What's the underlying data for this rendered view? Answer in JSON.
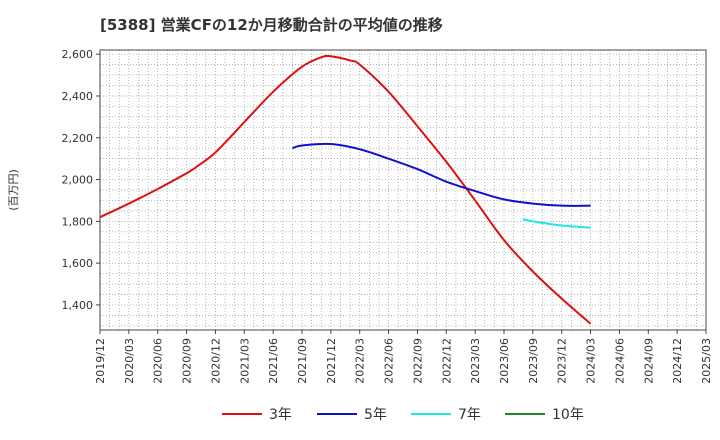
{
  "chart_data": {
    "type": "line",
    "title": "[5388]  営業CFの12か月移動合計の平均値の推移",
    "ylabel": "(百万円)",
    "xlabel": "",
    "ylim": [
      1280,
      2620
    ],
    "yticks": [
      1400,
      1600,
      1800,
      2000,
      2200,
      2400,
      2600
    ],
    "ytick_labels": [
      "1,400",
      "1,600",
      "1,800",
      "2,000",
      "2,200",
      "2,400",
      "2,600"
    ],
    "x_start": "2019/12",
    "x_end": "2025/03",
    "x_tick_labels": [
      "2019/12",
      "2020/03",
      "2020/06",
      "2020/09",
      "2020/12",
      "2021/03",
      "2021/06",
      "2021/09",
      "2021/12",
      "2022/03",
      "2022/06",
      "2022/09",
      "2022/12",
      "2023/03",
      "2023/06",
      "2023/09",
      "2023/12",
      "2024/03",
      "2024/06",
      "2024/09",
      "2024/12",
      "2025/03"
    ],
    "grid": true,
    "legend_position": "bottom",
    "series": [
      {
        "name": "3年",
        "color": "#dd1111",
        "x": [
          "2019/12",
          "2020/03",
          "2020/06",
          "2020/09",
          "2020/10",
          "2020/12",
          "2021/03",
          "2021/06",
          "2021/09",
          "2021/11",
          "2021/12",
          "2022/02",
          "2022/03",
          "2022/06",
          "2022/09",
          "2022/12",
          "2023/03",
          "2023/06",
          "2023/09",
          "2023/12",
          "2024/03"
        ],
        "values": [
          1820,
          1885,
          1955,
          2030,
          2060,
          2130,
          2275,
          2420,
          2540,
          2585,
          2590,
          2570,
          2550,
          2420,
          2255,
          2085,
          1900,
          1710,
          1560,
          1430,
          1310
        ]
      },
      {
        "name": "5年",
        "color": "#1111cc",
        "x": [
          "2021/08",
          "2021/09",
          "2021/12",
          "2022/03",
          "2022/06",
          "2022/09",
          "2022/12",
          "2023/03",
          "2023/06",
          "2023/09",
          "2023/12",
          "2024/03"
        ],
        "values": [
          2150,
          2163,
          2170,
          2145,
          2100,
          2050,
          1990,
          1945,
          1905,
          1885,
          1875,
          1875
        ]
      },
      {
        "name": "7年",
        "color": "#22e5e5",
        "x": [
          "2023/08",
          "2023/09",
          "2023/12",
          "2024/03"
        ],
        "values": [
          1810,
          1800,
          1780,
          1770
        ]
      },
      {
        "name": "10年",
        "color": "#228822",
        "x": [],
        "values": []
      }
    ]
  }
}
